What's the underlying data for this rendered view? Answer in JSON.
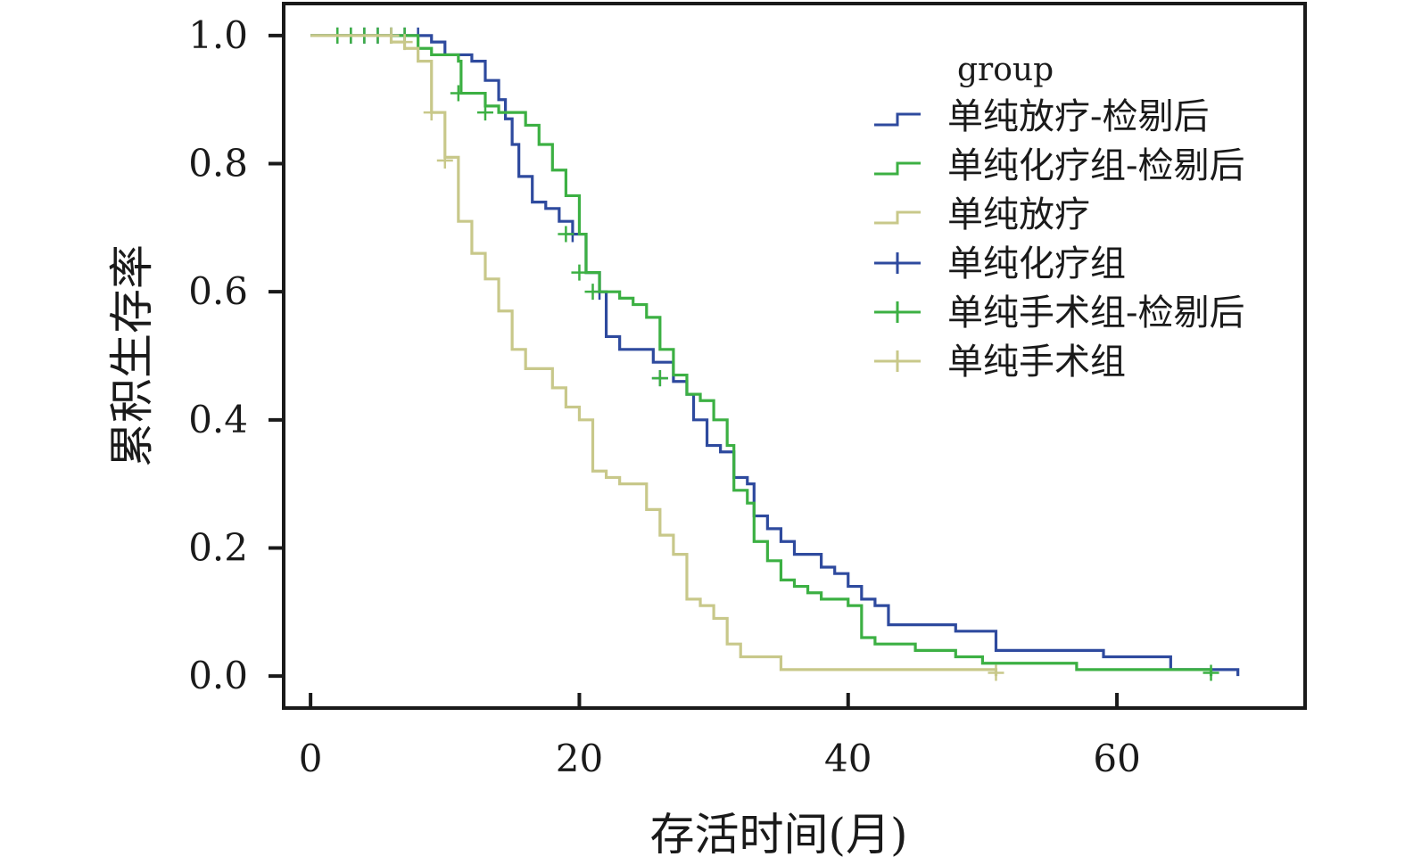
{
  "chart_data": {
    "type": "line",
    "subtype": "kaplan-meier",
    "xlabel": "存活时间(月)",
    "ylabel": "累积生存率",
    "xlim": [
      -2,
      74
    ],
    "ylim": [
      -0.05,
      1.05
    ],
    "xticks": [
      0,
      20,
      40,
      60
    ],
    "xtick_labels": [
      "0",
      "20",
      "40",
      "60"
    ],
    "yticks": [
      0.0,
      0.2,
      0.4,
      0.6,
      0.8,
      1.0
    ],
    "ytick_labels": [
      "0.0",
      "0.2",
      "0.4",
      "0.6",
      "0.8",
      "1.0"
    ],
    "grid": false,
    "legend": {
      "title": "group",
      "position": "top-right",
      "entries": [
        {
          "label": "单纯放疗-检剔后",
          "color": "#2e4a9e",
          "symbol": "step"
        },
        {
          "label": "单纯化疗组-检剔后",
          "color": "#3cb043",
          "symbol": "step"
        },
        {
          "label": "单纯放疗",
          "color": "#c8c88a",
          "symbol": "step"
        },
        {
          "label": "单纯化疗组",
          "color": "#2e4a9e",
          "symbol": "cross"
        },
        {
          "label": "单纯手术组-检剔后",
          "color": "#3cb043",
          "symbol": "cross"
        },
        {
          "label": "单纯手术组",
          "color": "#c8c88a",
          "symbol": "cross"
        }
      ]
    },
    "series": [
      {
        "name": "单纯放疗-检剔后",
        "color": "#2e4a9e",
        "steps": [
          [
            0,
            1.0
          ],
          [
            9,
            0.99
          ],
          [
            10,
            0.97
          ],
          [
            12,
            0.96
          ],
          [
            13,
            0.93
          ],
          [
            14,
            0.9
          ],
          [
            14.5,
            0.87
          ],
          [
            15,
            0.83
          ],
          [
            15.5,
            0.78
          ],
          [
            16.5,
            0.74
          ],
          [
            17.5,
            0.73
          ],
          [
            18.5,
            0.71
          ],
          [
            19.5,
            0.69
          ],
          [
            20.5,
            0.63
          ],
          [
            21.5,
            0.6
          ],
          [
            22,
            0.53
          ],
          [
            23,
            0.51
          ],
          [
            25.5,
            0.49
          ],
          [
            27,
            0.46
          ],
          [
            28,
            0.44
          ],
          [
            28.5,
            0.4
          ],
          [
            29.5,
            0.36
          ],
          [
            30.5,
            0.35
          ],
          [
            31.5,
            0.31
          ],
          [
            32.5,
            0.3
          ],
          [
            33,
            0.25
          ],
          [
            34,
            0.23
          ],
          [
            35,
            0.21
          ],
          [
            36,
            0.19
          ],
          [
            38,
            0.17
          ],
          [
            39,
            0.16
          ],
          [
            40,
            0.14
          ],
          [
            41,
            0.12
          ],
          [
            42,
            0.11
          ],
          [
            43,
            0.08
          ],
          [
            48,
            0.07
          ],
          [
            51,
            0.04
          ],
          [
            59,
            0.03
          ],
          [
            64,
            0.01
          ],
          [
            69,
            0.0
          ]
        ],
        "censored": [
          [
            2,
            1.0
          ],
          [
            3,
            1.0
          ],
          [
            4,
            1.0
          ],
          [
            5,
            1.0
          ],
          [
            6,
            1.0
          ],
          [
            7,
            1.0
          ],
          [
            8,
            1.0
          ],
          [
            19.5,
            0.69
          ],
          [
            21.5,
            0.6
          ],
          [
            26,
            0.465
          ]
        ]
      },
      {
        "name": "单纯化疗组-检剔后",
        "color": "#3cb043",
        "steps": [
          [
            0,
            1.0
          ],
          [
            8,
            0.98
          ],
          [
            9,
            0.97
          ],
          [
            11,
            0.96
          ],
          [
            11.2,
            0.91
          ],
          [
            13,
            0.89
          ],
          [
            14,
            0.88
          ],
          [
            16,
            0.86
          ],
          [
            17,
            0.83
          ],
          [
            18,
            0.79
          ],
          [
            19,
            0.75
          ],
          [
            20,
            0.69
          ],
          [
            20.5,
            0.63
          ],
          [
            21.5,
            0.6
          ],
          [
            23,
            0.59
          ],
          [
            24,
            0.58
          ],
          [
            25,
            0.56
          ],
          [
            26,
            0.51
          ],
          [
            27,
            0.47
          ],
          [
            28,
            0.44
          ],
          [
            29,
            0.43
          ],
          [
            30,
            0.4
          ],
          [
            31,
            0.36
          ],
          [
            31.5,
            0.29
          ],
          [
            32.5,
            0.27
          ],
          [
            33,
            0.21
          ],
          [
            34,
            0.18
          ],
          [
            35,
            0.15
          ],
          [
            36,
            0.14
          ],
          [
            37,
            0.13
          ],
          [
            38,
            0.12
          ],
          [
            40,
            0.11
          ],
          [
            41,
            0.06
          ],
          [
            42,
            0.05
          ],
          [
            45,
            0.04
          ],
          [
            48,
            0.03
          ],
          [
            50,
            0.02
          ],
          [
            57,
            0.01
          ],
          [
            67,
            0.0
          ]
        ],
        "censored": [
          [
            2,
            1.0
          ],
          [
            3,
            1.0
          ],
          [
            4,
            1.0
          ],
          [
            5,
            1.0
          ],
          [
            6,
            1.0
          ],
          [
            7,
            1.0
          ],
          [
            11,
            0.91
          ],
          [
            13,
            0.88
          ],
          [
            19,
            0.69
          ],
          [
            20,
            0.63
          ],
          [
            21,
            0.6
          ],
          [
            26,
            0.465
          ],
          [
            67,
            0.005
          ]
        ]
      },
      {
        "name": "单纯放疗",
        "color": "#c8c88a",
        "steps": [
          [
            0,
            1.0
          ],
          [
            6,
            0.99
          ],
          [
            7,
            0.98
          ],
          [
            8,
            0.96
          ],
          [
            9,
            0.88
          ],
          [
            10,
            0.81
          ],
          [
            11,
            0.71
          ],
          [
            12,
            0.66
          ],
          [
            13,
            0.62
          ],
          [
            14,
            0.57
          ],
          [
            15,
            0.51
          ],
          [
            16,
            0.48
          ],
          [
            18,
            0.45
          ],
          [
            19,
            0.42
          ],
          [
            20,
            0.4
          ],
          [
            21,
            0.32
          ],
          [
            22,
            0.31
          ],
          [
            23,
            0.3
          ],
          [
            25,
            0.26
          ],
          [
            26,
            0.22
          ],
          [
            27,
            0.19
          ],
          [
            28,
            0.12
          ],
          [
            29,
            0.11
          ],
          [
            30,
            0.09
          ],
          [
            31,
            0.05
          ],
          [
            32,
            0.03
          ],
          [
            35,
            0.01
          ],
          [
            51,
            0.0
          ]
        ],
        "censored": [
          [
            6,
            1.0
          ],
          [
            7,
            0.99
          ],
          [
            9,
            0.88
          ],
          [
            10,
            0.805
          ],
          [
            51,
            0.005
          ]
        ]
      }
    ]
  }
}
